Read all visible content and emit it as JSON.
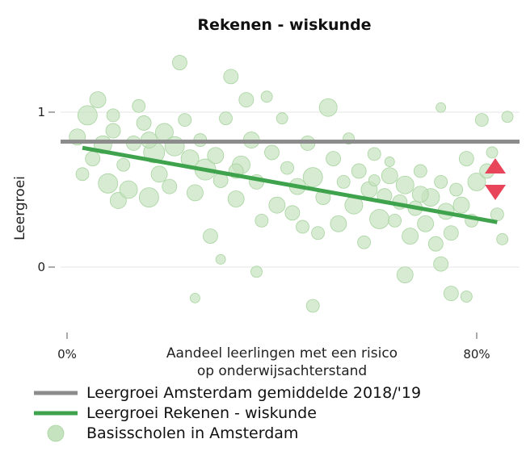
{
  "chart_data": {
    "type": "scatter",
    "title": "Rekenen - wiskunde",
    "ylabel": "Leergroei",
    "xlabel_lines": [
      "Aandeel leerlingen met een risico",
      "op onderwijsachterstand"
    ],
    "x_ticks": [
      {
        "value": 0,
        "label": "0%"
      },
      {
        "value": 80,
        "label": "80%"
      }
    ],
    "y_ticks": [
      {
        "value": 0,
        "label": "0"
      },
      {
        "value": 1,
        "label": "1"
      }
    ],
    "xlim": [
      0,
      88
    ],
    "ylim": [
      -0.45,
      1.45
    ],
    "grid": true,
    "legend_position": "bottom",
    "colors": {
      "average_line": "#8c8c8c",
      "trend_line": "#3fa34d",
      "points_fill": "#c4e3be",
      "points_stroke": "#a8d4a0",
      "arrow": "#e8455a"
    },
    "series": [
      {
        "name": "Leergroei Amsterdam gemiddelde 2018/'19",
        "kind": "hline",
        "y": 0.81
      },
      {
        "name": "Leergroei Rekenen - wiskunde",
        "kind": "trend",
        "x": [
          3,
          84
        ],
        "y": [
          0.77,
          0.29
        ]
      },
      {
        "name": "Basisscholen in Amsterdam",
        "kind": "points",
        "points": [
          [
            2,
            0.84,
            10
          ],
          [
            3,
            0.6,
            8
          ],
          [
            4,
            0.98,
            12
          ],
          [
            5,
            0.7,
            9
          ],
          [
            6,
            1.08,
            10
          ],
          [
            7,
            0.79,
            11
          ],
          [
            8,
            0.54,
            12
          ],
          [
            9,
            0.88,
            9
          ],
          [
            10,
            0.43,
            10
          ],
          [
            11,
            0.66,
            8
          ],
          [
            12,
            0.5,
            11
          ],
          [
            13,
            0.8,
            9
          ],
          [
            14,
            1.04,
            8
          ],
          [
            15,
            0.93,
            9
          ],
          [
            16,
            0.45,
            12
          ],
          [
            17,
            0.74,
            13
          ],
          [
            18,
            0.6,
            10
          ],
          [
            19,
            0.87,
            11
          ],
          [
            20,
            0.52,
            9
          ],
          [
            21,
            0.78,
            12
          ],
          [
            22,
            1.32,
            9
          ],
          [
            23,
            0.95,
            8
          ],
          [
            24,
            0.7,
            11
          ],
          [
            25,
            0.48,
            10
          ],
          [
            26,
            0.82,
            8
          ],
          [
            27,
            0.63,
            13
          ],
          [
            28,
            0.2,
            9
          ],
          [
            29,
            0.72,
            10
          ],
          [
            30,
            0.56,
            9
          ],
          [
            31,
            0.96,
            8
          ],
          [
            32,
            1.23,
            9
          ],
          [
            33,
            0.44,
            10
          ],
          [
            34,
            0.66,
            11
          ],
          [
            35,
            1.08,
            9
          ],
          [
            36,
            0.82,
            10
          ],
          [
            37,
            0.55,
            9
          ],
          [
            38,
            0.3,
            8
          ],
          [
            39,
            1.1,
            7
          ],
          [
            40,
            0.74,
            9
          ],
          [
            41,
            0.4,
            10
          ],
          [
            42,
            0.96,
            7
          ],
          [
            43,
            0.64,
            8
          ],
          [
            44,
            0.35,
            9
          ],
          [
            45,
            0.52,
            10
          ],
          [
            46,
            0.26,
            8
          ],
          [
            47,
            0.8,
            9
          ],
          [
            48,
            0.58,
            12
          ],
          [
            49,
            0.22,
            8
          ],
          [
            50,
            0.45,
            9
          ],
          [
            51,
            1.03,
            11
          ],
          [
            52,
            0.7,
            9
          ],
          [
            53,
            0.28,
            10
          ],
          [
            54,
            0.55,
            8
          ],
          [
            55,
            0.83,
            7
          ],
          [
            56,
            0.4,
            11
          ],
          [
            57,
            0.62,
            9
          ],
          [
            58,
            0.16,
            8
          ],
          [
            59,
            0.5,
            10
          ],
          [
            60,
            0.73,
            8
          ],
          [
            61,
            0.31,
            12
          ],
          [
            62,
            0.46,
            9
          ],
          [
            63,
            0.59,
            10
          ],
          [
            64,
            0.3,
            8
          ],
          [
            65,
            0.42,
            9
          ],
          [
            66,
            0.53,
            11
          ],
          [
            67,
            0.2,
            10
          ],
          [
            68,
            0.38,
            9
          ],
          [
            69,
            0.62,
            8
          ],
          [
            70,
            0.28,
            10
          ],
          [
            71,
            0.45,
            11
          ],
          [
            72,
            0.15,
            9
          ],
          [
            73,
            0.55,
            8
          ],
          [
            74,
            0.36,
            10
          ],
          [
            75,
            0.22,
            9
          ],
          [
            76,
            0.5,
            8
          ],
          [
            77,
            0.4,
            10
          ],
          [
            78,
            0.7,
            9
          ],
          [
            79,
            0.3,
            8
          ],
          [
            80,
            0.55,
            11
          ],
          [
            81,
            0.95,
            8
          ],
          [
            82,
            0.62,
            9
          ],
          [
            83,
            0.74,
            7
          ],
          [
            84,
            0.34,
            8
          ],
          [
            85,
            0.18,
            7
          ],
          [
            86,
            0.97,
            7
          ],
          [
            25,
            -0.2,
            6
          ],
          [
            30,
            0.05,
            6
          ],
          [
            37,
            -0.03,
            7
          ],
          [
            48,
            -0.25,
            8
          ],
          [
            66,
            -0.05,
            10
          ],
          [
            73,
            0.02,
            9
          ],
          [
            75,
            -0.17,
            9
          ],
          [
            78,
            -0.19,
            7
          ],
          [
            73,
            1.03,
            6
          ],
          [
            9,
            0.98,
            8
          ],
          [
            16,
            0.82,
            10
          ],
          [
            33,
            0.62,
            9
          ],
          [
            60,
            0.56,
            7
          ],
          [
            63,
            0.68,
            6
          ],
          [
            69,
            0.47,
            10
          ]
        ]
      }
    ],
    "legend": [
      {
        "kind": "line",
        "color_key": "average_line",
        "label": "Leergroei Amsterdam gemiddelde 2018/'19"
      },
      {
        "kind": "line",
        "color_key": "trend_line",
        "label": "Leergroei Rekenen - wiskunde"
      },
      {
        "kind": "circle",
        "color_key": "points_fill",
        "label": "Basisscholen in Amsterdam"
      }
    ],
    "arrows": [
      {
        "direction": "up",
        "icon": "triangle-up-icon"
      },
      {
        "direction": "down",
        "icon": "triangle-down-icon"
      }
    ]
  }
}
